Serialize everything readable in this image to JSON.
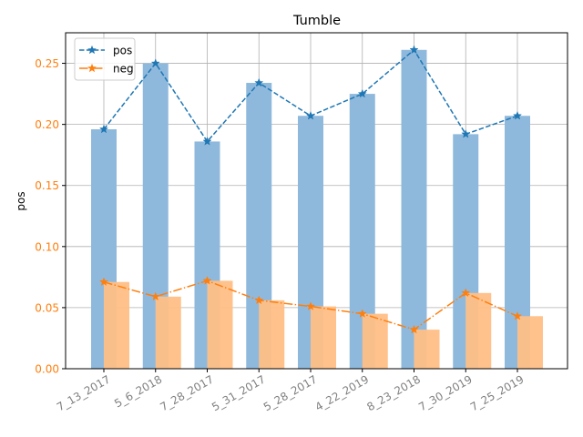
{
  "chart_data": {
    "type": "bar",
    "title": "Tumble",
    "ylabel": "pos",
    "xlabel": "",
    "categories": [
      "7_13_2017",
      "5_6_2018",
      "7_28_2017",
      "5_31_2017",
      "5_28_2017",
      "4_22_2019",
      "8_23_2018",
      "7_30_2019",
      "7_25_2019"
    ],
    "ylim": [
      0,
      0.275
    ],
    "yticks": [
      "0.00",
      "0.05",
      "0.10",
      "0.15",
      "0.20",
      "0.25"
    ],
    "grid": true,
    "legend_position": "top-left",
    "series": [
      {
        "name": "pos",
        "values": [
          0.196,
          0.25,
          0.186,
          0.234,
          0.207,
          0.225,
          0.261,
          0.192,
          0.207
        ],
        "color": "#1f77b4",
        "bar_color": "#8fb9dc",
        "line_style": "dashed",
        "marker": "star"
      },
      {
        "name": "neg",
        "values": [
          0.071,
          0.059,
          0.072,
          0.056,
          0.051,
          0.045,
          0.032,
          0.062,
          0.043
        ],
        "color": "#ff7f0e",
        "bar_color": "#ffbf86",
        "line_style": "dashdot",
        "marker": "star"
      }
    ],
    "tick_label_color": "#ff7f0e",
    "x_tick_color": "#808080"
  }
}
